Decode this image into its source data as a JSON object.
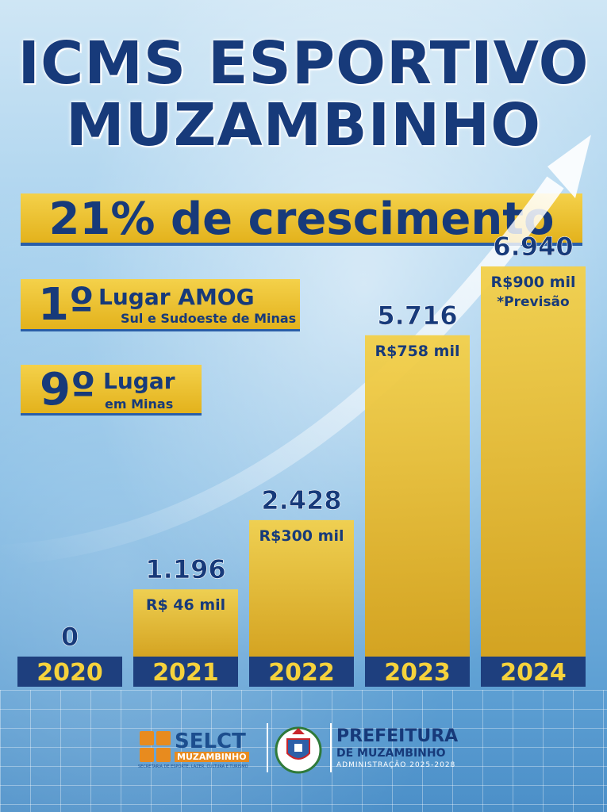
{
  "header": {
    "title_line1": "ICMS ESPORTIVO",
    "title_line2": "MUZAMBINHO"
  },
  "growth": "21% de crescimento",
  "rankings": [
    {
      "number": "1º",
      "main": "Lugar AMOG",
      "sub": "Sul e Sudoeste de Minas"
    },
    {
      "number": "9º",
      "main": "Lugar",
      "sub": "em Minas"
    }
  ],
  "colors": {
    "navy": "#173a7a",
    "gold": "#f0c635",
    "gold_dark": "#dba71a",
    "year_bar": "#1e3f7e",
    "year_text": "#f5d23c"
  },
  "chart_data": {
    "type": "bar",
    "categories": [
      "2020",
      "2021",
      "2022",
      "2023",
      "2024"
    ],
    "values": [
      0,
      1196,
      2428,
      5716,
      6940
    ],
    "value_labels": [
      "0",
      "1.196",
      "2.428",
      "5.716",
      "6.940"
    ],
    "amount_labels": [
      "",
      "R$ 46 mil",
      "R$300 mil",
      "R$758 mil",
      "R$900 mil"
    ],
    "notes": [
      "",
      "",
      "",
      "",
      "*Previsão"
    ],
    "ylim": [
      0,
      6940
    ],
    "title": "",
    "xlabel": "",
    "ylabel": "",
    "grid": false,
    "legend": "none"
  },
  "footer": {
    "selct_name": "SELCT",
    "selct_city": "MUZAMBINHO",
    "selct_desc": "SECRETARIA DE ESPORTE, LAZER, CULTURA E TURISMO",
    "crest_icon": "municipal-crest-icon",
    "pref_title": "PREFEITURA",
    "pref_sub": "DE MUZAMBINHO",
    "pref_admin": "ADMINISTRAÇÃO 2025-2028"
  }
}
